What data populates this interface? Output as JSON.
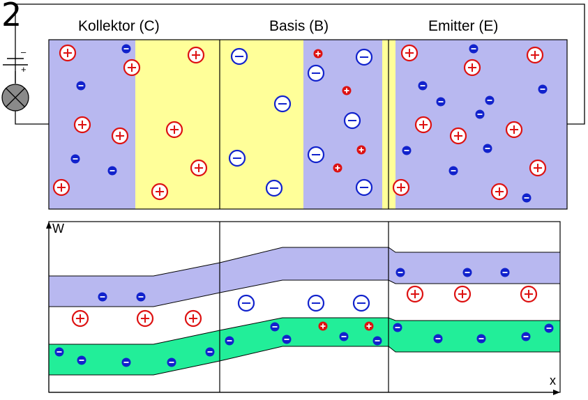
{
  "figure_number": "2",
  "regions": {
    "collector": "Kollektor (C)",
    "base": "Basis (B)",
    "emitter": "Emitter (E)"
  },
  "battery": {
    "minus": "–",
    "plus": "+"
  },
  "energy_diagram": {
    "y_axis": "W",
    "x_axis": "x"
  },
  "colors": {
    "n_region": "#b8b8f0",
    "depletion": "#ffff99",
    "conduction_band": "#b8b8f0",
    "valence_band": "#22ee99",
    "hole": "#dd1111",
    "electron": "#1122cc"
  }
}
